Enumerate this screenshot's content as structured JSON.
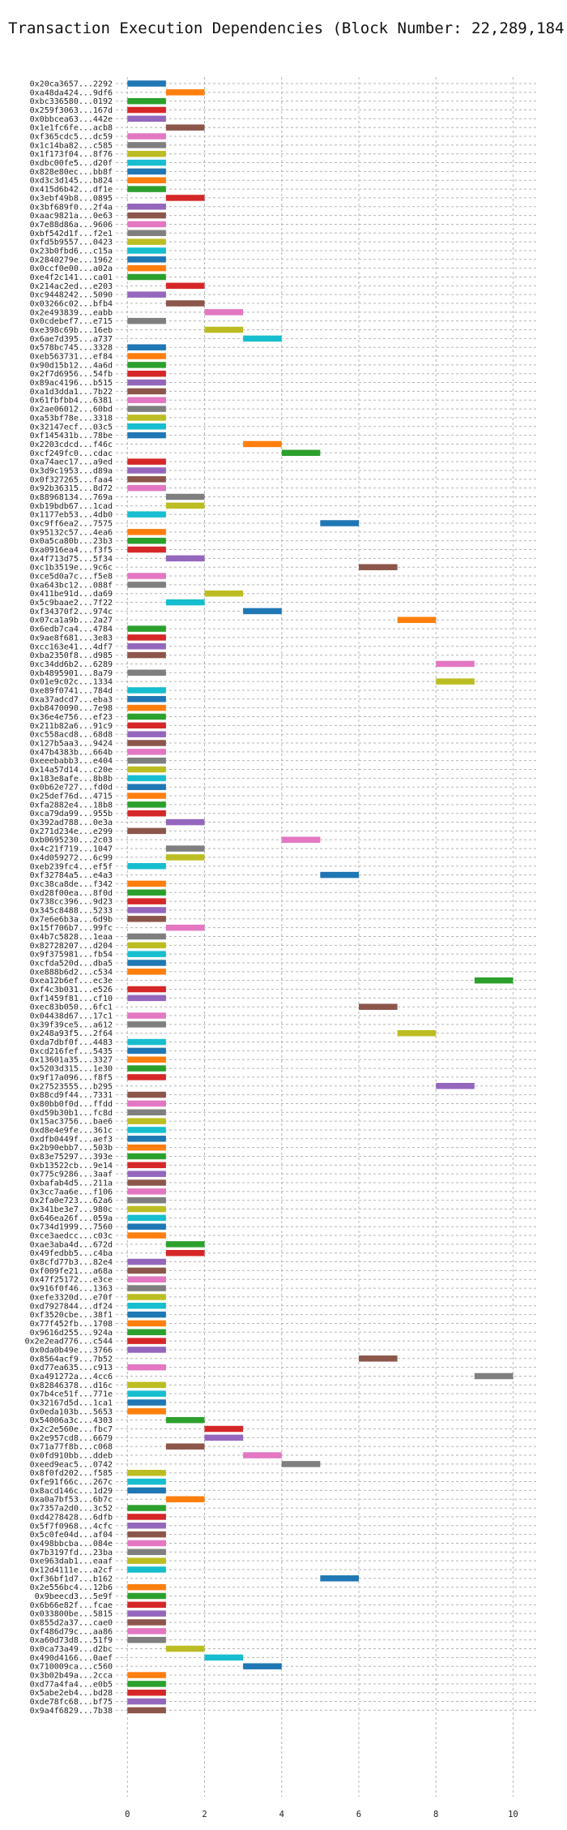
{
  "chart_data": {
    "type": "gantt",
    "title": "Transaction Execution Dependencies (Block Number: 22,289,184)",
    "xlabel": "",
    "ylabel": "",
    "xlim": [
      -0.3,
      10.6
    ],
    "xticks": [
      0,
      2,
      4,
      6,
      8,
      10
    ],
    "grid": true,
    "palette": [
      "#1f77b4",
      "#ff7f0e",
      "#2ca02c",
      "#d62728",
      "#9467bd",
      "#8c564b",
      "#e377c2",
      "#7f7f7f",
      "#bcbd22",
      "#17becf"
    ],
    "rows": [
      {
        "label": "0x20ca3657...2292",
        "start": 0,
        "end": 1
      },
      {
        "label": "0xa48da424...9df6",
        "start": 1,
        "end": 2
      },
      {
        "label": "0xbc336580...0192",
        "start": 0,
        "end": 1
      },
      {
        "label": "0x259f3063...167d",
        "start": 0,
        "end": 1
      },
      {
        "label": "0x0bbcea63...442e",
        "start": 0,
        "end": 1
      },
      {
        "label": "0x1e1fc6fe...acb8",
        "start": 1,
        "end": 2
      },
      {
        "label": "0xf365cdc5...dc59",
        "start": 0,
        "end": 1
      },
      {
        "label": "0x1c14ba82...c585",
        "start": 0,
        "end": 1
      },
      {
        "label": "0x1f173f04...8f76",
        "start": 0,
        "end": 1
      },
      {
        "label": "0xdbc00fe5...d20f",
        "start": 0,
        "end": 1
      },
      {
        "label": "0x828e80ec...bb8f",
        "start": 0,
        "end": 1
      },
      {
        "label": "0xd3c3d145...b824",
        "start": 0,
        "end": 1
      },
      {
        "label": "0x415d6b42...df1e",
        "start": 0,
        "end": 1
      },
      {
        "label": "0x3ebf49b8...0895",
        "start": 1,
        "end": 2
      },
      {
        "label": "0x3bf689f0...2f4a",
        "start": 0,
        "end": 1
      },
      {
        "label": "0xaac9821a...0e63",
        "start": 0,
        "end": 1
      },
      {
        "label": "0x7e88d86a...9606",
        "start": 0,
        "end": 1
      },
      {
        "label": "0xbf542d1f...f2e1",
        "start": 0,
        "end": 1
      },
      {
        "label": "0xfd5b9557...0423",
        "start": 0,
        "end": 1
      },
      {
        "label": "0x23b0fbd6...c15a",
        "start": 0,
        "end": 1
      },
      {
        "label": "0x2840279e...1962",
        "start": 0,
        "end": 1
      },
      {
        "label": "0x0ccf0e00...a02a",
        "start": 0,
        "end": 1
      },
      {
        "label": "0xe4f2c141...ca01",
        "start": 0,
        "end": 1
      },
      {
        "label": "0x214ac2ed...e203",
        "start": 1,
        "end": 2
      },
      {
        "label": "0xc9448242...5090",
        "start": 0,
        "end": 1
      },
      {
        "label": "0x03266c02...bfb4",
        "start": 1,
        "end": 2
      },
      {
        "label": "0x2e493839...eabb",
        "start": 2,
        "end": 3
      },
      {
        "label": "0x0cdebef7...e715",
        "start": 0,
        "end": 1
      },
      {
        "label": "0xe398c69b...16eb",
        "start": 2,
        "end": 3
      },
      {
        "label": "0x6ae7d395...a737",
        "start": 3,
        "end": 4
      },
      {
        "label": "0x578bc745...3328",
        "start": 0,
        "end": 1
      },
      {
        "label": "0xeb563731...ef84",
        "start": 0,
        "end": 1
      },
      {
        "label": "0x90d15b12...4a6d",
        "start": 0,
        "end": 1
      },
      {
        "label": "0x2f7d6956...54fb",
        "start": 0,
        "end": 1
      },
      {
        "label": "0x89ac4196...b515",
        "start": 0,
        "end": 1
      },
      {
        "label": "0xa1d3dda1...7b22",
        "start": 0,
        "end": 1
      },
      {
        "label": "0x61fbfbb4...6381",
        "start": 0,
        "end": 1
      },
      {
        "label": "0x2ae06012...60bd",
        "start": 0,
        "end": 1
      },
      {
        "label": "0xa53bf78e...3318",
        "start": 0,
        "end": 1
      },
      {
        "label": "0x32147ecf...03c5",
        "start": 0,
        "end": 1
      },
      {
        "label": "0xf145431b...78be",
        "start": 0,
        "end": 1
      },
      {
        "label": "0x2203cdcd...f46c",
        "start": 3,
        "end": 4
      },
      {
        "label": "0xcf249fc0...cdac",
        "start": 4,
        "end": 5
      },
      {
        "label": "0xa74aec17...a9ed",
        "start": 0,
        "end": 1
      },
      {
        "label": "0x3d9c1953...d89a",
        "start": 0,
        "end": 1
      },
      {
        "label": "0x0f327265...faa4",
        "start": 0,
        "end": 1
      },
      {
        "label": "0x92b36315...8d72",
        "start": 0,
        "end": 1
      },
      {
        "label": "0x88968134...769a",
        "start": 1,
        "end": 2
      },
      {
        "label": "0xb19bdb67...1cad",
        "start": 1,
        "end": 2
      },
      {
        "label": "0x1177eb53...4db0",
        "start": 0,
        "end": 1
      },
      {
        "label": "0xc9ff6ea2...7575",
        "start": 5,
        "end": 6
      },
      {
        "label": "0x95132c57...4ea6",
        "start": 0,
        "end": 1
      },
      {
        "label": "0x0a5ca80b...23b3",
        "start": 0,
        "end": 1
      },
      {
        "label": "0xa0916ea4...f3f5",
        "start": 0,
        "end": 1
      },
      {
        "label": "0x4f713d75...5f34",
        "start": 1,
        "end": 2
      },
      {
        "label": "0xc1b3519e...9c6c",
        "start": 6,
        "end": 7
      },
      {
        "label": "0xce5d0a7c...f5e8",
        "start": 0,
        "end": 1
      },
      {
        "label": "0xa643bc12...088f",
        "start": 0,
        "end": 1
      },
      {
        "label": "0x411be91d...da69",
        "start": 2,
        "end": 3
      },
      {
        "label": "0x5c9baae2...7f22",
        "start": 1,
        "end": 2
      },
      {
        "label": "0xf34370f2...974c",
        "start": 3,
        "end": 4
      },
      {
        "label": "0x07ca1a9b...2a27",
        "start": 7,
        "end": 8
      },
      {
        "label": "0x6edb7ca4...4784",
        "start": 0,
        "end": 1
      },
      {
        "label": "0x9ae8f681...3e83",
        "start": 0,
        "end": 1
      },
      {
        "label": "0xcc163e41...4df7",
        "start": 0,
        "end": 1
      },
      {
        "label": "0xba2350f8...d985",
        "start": 0,
        "end": 1
      },
      {
        "label": "0xc34dd6b2...6289",
        "start": 8,
        "end": 9
      },
      {
        "label": "0xb4895901...8a79",
        "start": 0,
        "end": 1
      },
      {
        "label": "0x01e9c02c...1334",
        "start": 8,
        "end": 9
      },
      {
        "label": "0xe89f0741...784d",
        "start": 0,
        "end": 1
      },
      {
        "label": "0xa37adcd7...eba3",
        "start": 0,
        "end": 1
      },
      {
        "label": "0xb8470090...7e98",
        "start": 0,
        "end": 1
      },
      {
        "label": "0x36e4e756...ef23",
        "start": 0,
        "end": 1
      },
      {
        "label": "0x211b82a6...91c9",
        "start": 0,
        "end": 1
      },
      {
        "label": "0xc558acd8...68d8",
        "start": 0,
        "end": 1
      },
      {
        "label": "0x127b5aa3...9424",
        "start": 0,
        "end": 1
      },
      {
        "label": "0x47b4383b...664b",
        "start": 0,
        "end": 1
      },
      {
        "label": "0xeeebabb3...e404",
        "start": 0,
        "end": 1
      },
      {
        "label": "0x14a57d14...c20e",
        "start": 0,
        "end": 1
      },
      {
        "label": "0x183e8afe...8b8b",
        "start": 0,
        "end": 1
      },
      {
        "label": "0x0b62e727...fd0d",
        "start": 0,
        "end": 1
      },
      {
        "label": "0x25def76d...4715",
        "start": 0,
        "end": 1
      },
      {
        "label": "0xfa2882e4...18b8",
        "start": 0,
        "end": 1
      },
      {
        "label": "0xca79da99...955b",
        "start": 0,
        "end": 1
      },
      {
        "label": "0x392ad788...0e3a",
        "start": 1,
        "end": 2
      },
      {
        "label": "0x271d234e...e299",
        "start": 0,
        "end": 1
      },
      {
        "label": "0xb0695230...2c03",
        "start": 4,
        "end": 5
      },
      {
        "label": "0x4c21f719...1047",
        "start": 1,
        "end": 2
      },
      {
        "label": "0x4d059272...6c99",
        "start": 1,
        "end": 2
      },
      {
        "label": "0xeb239fc4...ef5f",
        "start": 0,
        "end": 1
      },
      {
        "label": "0xf32784a5...e4a3",
        "start": 5,
        "end": 6
      },
      {
        "label": "0xc38ca8de...f342",
        "start": 0,
        "end": 1
      },
      {
        "label": "0xd28f00ea...8f0d",
        "start": 0,
        "end": 1
      },
      {
        "label": "0x738cc396...9d23",
        "start": 0,
        "end": 1
      },
      {
        "label": "0x345c8488...5233",
        "start": 0,
        "end": 1
      },
      {
        "label": "0x7e6e6b3a...6d9b",
        "start": 0,
        "end": 1
      },
      {
        "label": "0x15f706b7...99fc",
        "start": 1,
        "end": 2
      },
      {
        "label": "0x4b7c5828...1eaa",
        "start": 0,
        "end": 1
      },
      {
        "label": "0x82728207...d204",
        "start": 0,
        "end": 1
      },
      {
        "label": "0x9f375981...fb54",
        "start": 0,
        "end": 1
      },
      {
        "label": "0xcfda520d...dba5",
        "start": 0,
        "end": 1
      },
      {
        "label": "0xe888b6d2...c534",
        "start": 0,
        "end": 1
      },
      {
        "label": "0xea12b6ef...ec3e",
        "start": 9,
        "end": 10
      },
      {
        "label": "0xf4c3b031...e526",
        "start": 0,
        "end": 1
      },
      {
        "label": "0xf1459f81...cf10",
        "start": 0,
        "end": 1
      },
      {
        "label": "0xec83b050...6fc1",
        "start": 6,
        "end": 7
      },
      {
        "label": "0x04438d67...17c1",
        "start": 0,
        "end": 1
      },
      {
        "label": "0x39f39ce5...a612",
        "start": 0,
        "end": 1
      },
      {
        "label": "0x248a93f5...2f64",
        "start": 7,
        "end": 8
      },
      {
        "label": "0xda7dbf0f...4483",
        "start": 0,
        "end": 1
      },
      {
        "label": "0xcd216fef...5435",
        "start": 0,
        "end": 1
      },
      {
        "label": "0x13601a35...3327",
        "start": 0,
        "end": 1
      },
      {
        "label": "0x5203d315...1e30",
        "start": 0,
        "end": 1
      },
      {
        "label": "0x9f17a096...f8f5",
        "start": 0,
        "end": 1
      },
      {
        "label": "0x27523555...b295",
        "start": 8,
        "end": 9
      },
      {
        "label": "0x88cd9f44...7331",
        "start": 0,
        "end": 1
      },
      {
        "label": "0x80bb0f0d...ffdd",
        "start": 0,
        "end": 1
      },
      {
        "label": "0xd59b30b1...fc8d",
        "start": 0,
        "end": 1
      },
      {
        "label": "0x15ac3756...bae6",
        "start": 0,
        "end": 1
      },
      {
        "label": "0xd8e4e9fe...361c",
        "start": 0,
        "end": 1
      },
      {
        "label": "0xdfb0449f...aef3",
        "start": 0,
        "end": 1
      },
      {
        "label": "0x2b90ebb7...503b",
        "start": 0,
        "end": 1
      },
      {
        "label": "0x83e75297...393e",
        "start": 0,
        "end": 1
      },
      {
        "label": "0xb13522cb...9e14",
        "start": 0,
        "end": 1
      },
      {
        "label": "0x775c9286...3aaf",
        "start": 0,
        "end": 1
      },
      {
        "label": "0xbafab4d5...211a",
        "start": 0,
        "end": 1
      },
      {
        "label": "0x3cc7aa6e...f106",
        "start": 0,
        "end": 1
      },
      {
        "label": "0x2fa0e723...62a6",
        "start": 0,
        "end": 1
      },
      {
        "label": "0x341be3e7...980c",
        "start": 0,
        "end": 1
      },
      {
        "label": "0x646ea26f...059a",
        "start": 0,
        "end": 1
      },
      {
        "label": "0x734d1999...7560",
        "start": 0,
        "end": 1
      },
      {
        "label": "0xce3aedcc...c03c",
        "start": 0,
        "end": 1
      },
      {
        "label": "0xae3aba4d...672d",
        "start": 1,
        "end": 2
      },
      {
        "label": "0x49fedbb5...c4ba",
        "start": 1,
        "end": 2
      },
      {
        "label": "0x8cfd77b3...82e4",
        "start": 0,
        "end": 1
      },
      {
        "label": "0xf009fe21...a68a",
        "start": 0,
        "end": 1
      },
      {
        "label": "0x47f25172...e3ce",
        "start": 0,
        "end": 1
      },
      {
        "label": "0x916f0f46...1363",
        "start": 0,
        "end": 1
      },
      {
        "label": "0xefe3320d...e70f",
        "start": 0,
        "end": 1
      },
      {
        "label": "0xd7927844...df24",
        "start": 0,
        "end": 1
      },
      {
        "label": "0xf3520cbe...38f1",
        "start": 0,
        "end": 1
      },
      {
        "label": "0x77f452fb...1708",
        "start": 0,
        "end": 1
      },
      {
        "label": "0x9616d255...924a",
        "start": 0,
        "end": 1
      },
      {
        "label": "0x2e2ead776...c544",
        "start": 0,
        "end": 1
      },
      {
        "label": "0x0da0b49e...3766",
        "start": 0,
        "end": 1
      },
      {
        "label": "0x8564acf9...7b52",
        "start": 6,
        "end": 7
      },
      {
        "label": "0xd77ea635...c913",
        "start": 0,
        "end": 1
      },
      {
        "label": "0xa491272a...4cc6",
        "start": 9,
        "end": 10
      },
      {
        "label": "0x82846378...d16c",
        "start": 0,
        "end": 1
      },
      {
        "label": "0x7b4ce51f...771e",
        "start": 0,
        "end": 1
      },
      {
        "label": "0x32167d5d...1ca1",
        "start": 0,
        "end": 1
      },
      {
        "label": "0x0eda103b...5653",
        "start": 0,
        "end": 1
      },
      {
        "label": "0x54006a3c...4303",
        "start": 1,
        "end": 2
      },
      {
        "label": "0x2c2e560e...fbc7",
        "start": 2,
        "end": 3
      },
      {
        "label": "0x2e957cd8...6679",
        "start": 2,
        "end": 3
      },
      {
        "label": "0x71a77f8b...c068",
        "start": 1,
        "end": 2
      },
      {
        "label": "0x0fd910bb...ddeb",
        "start": 3,
        "end": 4
      },
      {
        "label": "0xeed9eac5...0742",
        "start": 4,
        "end": 5
      },
      {
        "label": "0x8f0fd202...f585",
        "start": 0,
        "end": 1
      },
      {
        "label": "0xfe91f66c...267c",
        "start": 0,
        "end": 1
      },
      {
        "label": "0x8acd146c...1d29",
        "start": 0,
        "end": 1
      },
      {
        "label": "0xa0a7bf53...6b7c",
        "start": 1,
        "end": 2
      },
      {
        "label": "0x7357a2d0...3c52",
        "start": 0,
        "end": 1
      },
      {
        "label": "0xd4278428...6dfb",
        "start": 0,
        "end": 1
      },
      {
        "label": "0x5f7f0968...4cfc",
        "start": 0,
        "end": 1
      },
      {
        "label": "0x5c0fe04d...af04",
        "start": 0,
        "end": 1
      },
      {
        "label": "0x498bbcba...084e",
        "start": 0,
        "end": 1
      },
      {
        "label": "0x7b3197fd...23ba",
        "start": 0,
        "end": 1
      },
      {
        "label": "0xe963dab1...eaaf",
        "start": 0,
        "end": 1
      },
      {
        "label": "0x12d4111e...a2cf",
        "start": 0,
        "end": 1
      },
      {
        "label": "0xf36bf1d7...b162",
        "start": 5,
        "end": 6
      },
      {
        "label": "0x2e556bc4...12b6",
        "start": 0,
        "end": 1
      },
      {
        "label": "0x9beecd3...5e9f",
        "start": 0,
        "end": 1
      },
      {
        "label": "0x6b66e82f...fcae",
        "start": 0,
        "end": 1
      },
      {
        "label": "0x033800be...5815",
        "start": 0,
        "end": 1
      },
      {
        "label": "0x855d2a37...cae0",
        "start": 0,
        "end": 1
      },
      {
        "label": "0xf486d79c...aa86",
        "start": 0,
        "end": 1
      },
      {
        "label": "0xa60d73d8...51f9",
        "start": 0,
        "end": 1
      },
      {
        "label": "0x0ca73a49...d2bc",
        "start": 1,
        "end": 2
      },
      {
        "label": "0x490d4166...0aef",
        "start": 2,
        "end": 3
      },
      {
        "label": "0x710009ca...c560",
        "start": 3,
        "end": 4
      },
      {
        "label": "0x3b02b49a...2cca",
        "start": 0,
        "end": 1
      },
      {
        "label": "0xd77a4fa4...e0b5",
        "start": 0,
        "end": 1
      },
      {
        "label": "0x5abe2eb4...bd28",
        "start": 0,
        "end": 1
      },
      {
        "label": "0xde78fc68...bf75",
        "start": 0,
        "end": 1
      },
      {
        "label": "0x9a4f6829...7b38",
        "start": 0,
        "end": 1
      }
    ]
  }
}
